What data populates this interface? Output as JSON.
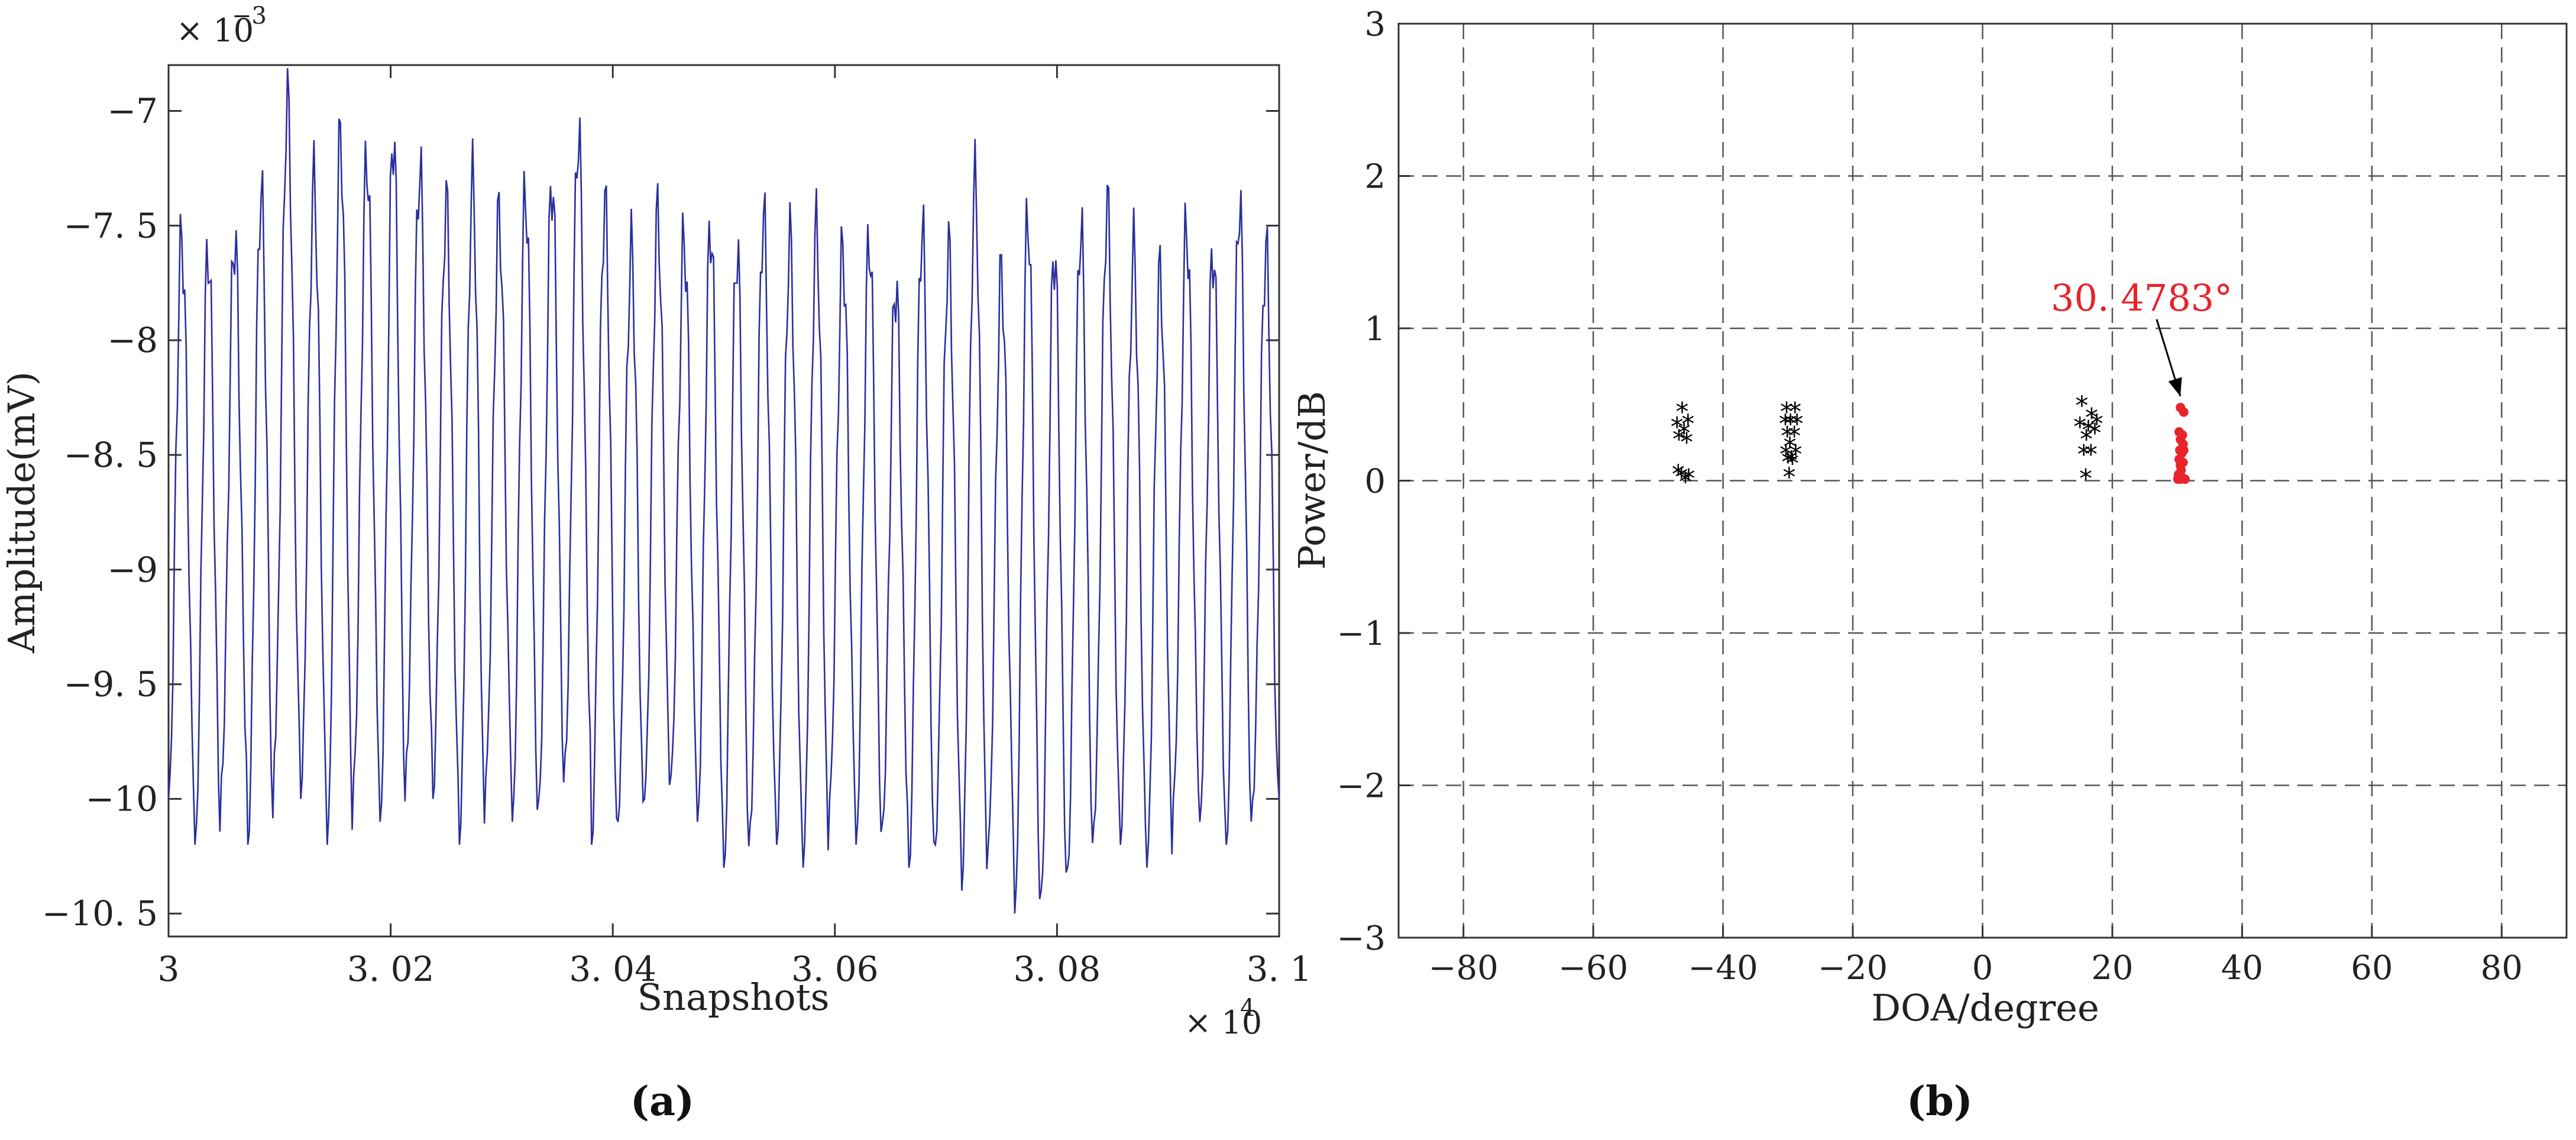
{
  "panels": {
    "a_label": "(a)",
    "b_label": "(b)"
  },
  "chart_data": [
    {
      "type": "line",
      "xlabel": "Snapshots",
      "ylabel": "Amplitude(mV)",
      "x_multiplier": "× 10",
      "x_multiplier_exp": "4",
      "y_multiplier": "× 10",
      "y_multiplier_exp": "−3",
      "xlim": [
        3.0,
        3.1
      ],
      "ylim": [
        -10.6,
        -6.8
      ],
      "xticks": [
        3.0,
        3.02,
        3.04,
        3.06,
        3.08,
        3.1
      ],
      "xtick_labels": [
        "3",
        "3. 02",
        "3. 04",
        "3. 06",
        "3. 08",
        "3. 1"
      ],
      "yticks": [
        -10.5,
        -10,
        -9.5,
        -9,
        -8.5,
        -8,
        -7.5,
        -7
      ],
      "ytick_labels": [
        "−10. 5",
        "−10",
        "−9. 5",
        "−9",
        "−8. 5",
        "−8",
        "−7. 5",
        "−7"
      ],
      "grid": false,
      "line_color": "#2b2f9e",
      "series": [
        {
          "x_start": 3.0,
          "x_end": 3.1,
          "n_cycles": 42,
          "minima": [
            -10.0,
            -10.2,
            -9.9,
            -10.2,
            -9.8,
            -10.0,
            -10.2,
            -9.9,
            -10.1,
            -9.8,
            -10.0,
            -10.2,
            -9.9,
            -10.1,
            -10.0,
            -9.8,
            -10.2,
            -10.1,
            -10.0,
            -9.9,
            -10.1,
            -10.3,
            -10.1,
            -10.2,
            -10.3,
            -10.0,
            -10.2,
            -10.1,
            -10.3,
            -10.2,
            -10.4,
            -10.2,
            -10.5,
            -10.4,
            -10.3,
            -10.1,
            -10.2,
            -10.3,
            -10.0,
            -10.1,
            -10.2,
            -10.0
          ],
          "maxima": [
            -7.55,
            -7.6,
            -7.55,
            -7.35,
            -6.95,
            -7.3,
            -7.1,
            -7.2,
            -7.1,
            -7.25,
            -7.4,
            -7.3,
            -7.45,
            -7.35,
            -7.3,
            -7.1,
            -7.4,
            -7.6,
            -7.45,
            -7.55,
            -7.5,
            -7.6,
            -7.45,
            -7.55,
            -7.5,
            -7.6,
            -7.55,
            -7.75,
            -7.5,
            -7.6,
            -7.3,
            -7.7,
            -7.45,
            -7.6,
            -7.5,
            -7.4,
            -7.6,
            -7.7,
            -7.5,
            -7.6,
            -7.4,
            -7.6
          ]
        }
      ]
    },
    {
      "type": "scatter",
      "xlabel": "DOA/degree",
      "ylabel": "Power/dB",
      "xlim": [
        -90,
        90
      ],
      "ylim": [
        -3,
        3
      ],
      "xticks": [
        -80,
        -60,
        -40,
        -20,
        0,
        20,
        40,
        60,
        80
      ],
      "xtick_labels": [
        "−80",
        "−60",
        "−40",
        "−20",
        "0",
        "20",
        "40",
        "60",
        "80"
      ],
      "yticks": [
        -3,
        -2,
        -1,
        0,
        1,
        2,
        3
      ],
      "ytick_labels": [
        "−3",
        "−2",
        "−1",
        "0",
        "1",
        "2",
        "3"
      ],
      "grid": true,
      "annotation": {
        "text": "30. 4783°",
        "x": 30.4783,
        "y": 0.5,
        "color": "#e8232a"
      },
      "series": [
        {
          "marker": "star",
          "color": "#000000",
          "points": [
            [
              -46.3,
              0.48
            ],
            [
              -47.1,
              0.38
            ],
            [
              -45.4,
              0.4
            ],
            [
              -46.0,
              0.34
            ],
            [
              -46.8,
              0.3
            ],
            [
              -45.6,
              0.28
            ],
            [
              -46.4,
              0.05
            ],
            [
              -45.8,
              0.02
            ],
            [
              -46.9,
              0.07
            ],
            [
              -45.3,
              0.04
            ],
            [
              -30.2,
              0.48
            ],
            [
              -28.9,
              0.48
            ],
            [
              -29.6,
              0.4
            ],
            [
              -30.4,
              0.4
            ],
            [
              -28.6,
              0.4
            ],
            [
              -30.1,
              0.32
            ],
            [
              -29.0,
              0.32
            ],
            [
              -29.7,
              0.25
            ],
            [
              -30.3,
              0.2
            ],
            [
              -28.8,
              0.2
            ],
            [
              -29.5,
              0.16
            ],
            [
              -30.0,
              0.15
            ],
            [
              -29.3,
              0.14
            ],
            [
              -29.8,
              0.05
            ],
            [
              15.3,
              0.52
            ],
            [
              16.8,
              0.44
            ],
            [
              17.6,
              0.4
            ],
            [
              15.0,
              0.38
            ],
            [
              16.3,
              0.36
            ],
            [
              17.3,
              0.34
            ],
            [
              16.0,
              0.3
            ],
            [
              15.6,
              0.2
            ],
            [
              16.7,
              0.2
            ],
            [
              15.9,
              0.04
            ]
          ]
        },
        {
          "marker": "dot",
          "color": "#e8232a",
          "points": [
            [
              30.5,
              0.48
            ],
            [
              31.0,
              0.45
            ],
            [
              30.3,
              0.32
            ],
            [
              30.8,
              0.3
            ],
            [
              30.5,
              0.27
            ],
            [
              30.9,
              0.24
            ],
            [
              30.4,
              0.2
            ],
            [
              30.7,
              0.18
            ],
            [
              30.3,
              0.14
            ],
            [
              30.9,
              0.12
            ],
            [
              30.5,
              0.1
            ],
            [
              30.6,
              0.07
            ],
            [
              30.2,
              0.04
            ],
            [
              30.8,
              0.02
            ],
            [
              30.5,
              0.01
            ],
            [
              31.2,
              0.01
            ],
            [
              30.1,
              0.01
            ],
            [
              31.0,
              0.2
            ]
          ]
        }
      ]
    }
  ]
}
